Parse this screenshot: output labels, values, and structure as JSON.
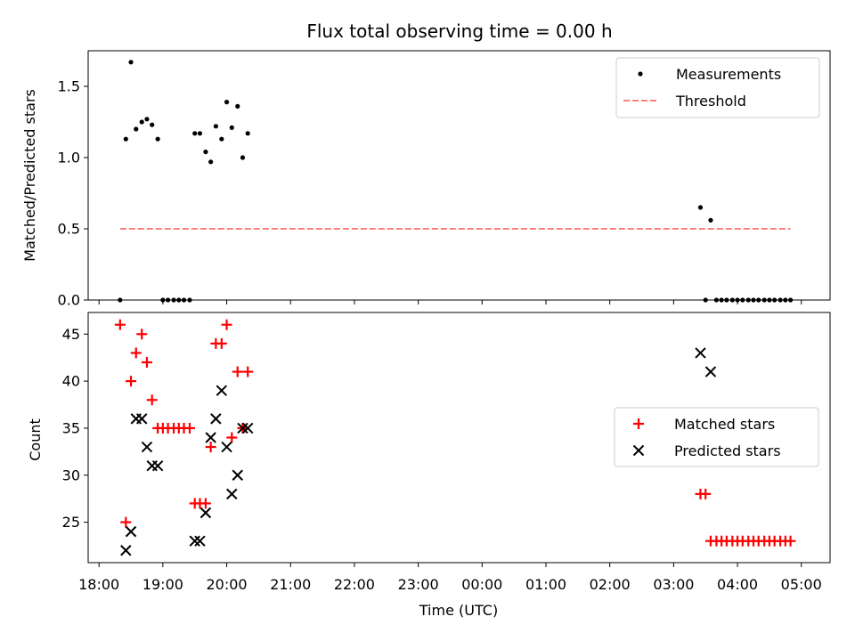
{
  "chart_data": [
    {
      "type": "scatter",
      "title": "Flux total observing time = 0.00 h",
      "xlabel": "",
      "ylabel": "Matched/Predicted stars",
      "xlim": [
        17.83,
        29.45
      ],
      "ylim": [
        0.0,
        1.75
      ],
      "yticks": [
        0.0,
        0.5,
        1.0,
        1.5
      ],
      "ytick_labels": [
        "0.0",
        "0.5",
        "1.0",
        "1.5"
      ],
      "legend_position": "upper right",
      "series": [
        {
          "name": "Measurements",
          "style": "dot",
          "color": "#000000",
          "points": [
            [
              18.33,
              0.0
            ],
            [
              18.42,
              1.13
            ],
            [
              18.5,
              1.67
            ],
            [
              18.58,
              1.2
            ],
            [
              18.67,
              1.25
            ],
            [
              18.75,
              1.27
            ],
            [
              18.83,
              1.23
            ],
            [
              18.92,
              1.13
            ],
            [
              19.0,
              0.0
            ],
            [
              19.08,
              0.0
            ],
            [
              19.17,
              0.0
            ],
            [
              19.25,
              0.0
            ],
            [
              19.33,
              0.0
            ],
            [
              19.42,
              0.0
            ],
            [
              19.5,
              1.17
            ],
            [
              19.58,
              1.17
            ],
            [
              19.67,
              1.04
            ],
            [
              19.75,
              0.97
            ],
            [
              19.83,
              1.22
            ],
            [
              19.92,
              1.13
            ],
            [
              20.0,
              1.39
            ],
            [
              20.08,
              1.21
            ],
            [
              20.17,
              1.36
            ],
            [
              20.25,
              1.0
            ],
            [
              20.33,
              1.17
            ],
            [
              27.42,
              0.65
            ],
            [
              27.5,
              0.0
            ],
            [
              27.58,
              0.56
            ],
            [
              27.67,
              0.0
            ],
            [
              27.75,
              0.0
            ],
            [
              27.83,
              0.0
            ],
            [
              27.92,
              0.0
            ],
            [
              28.0,
              0.0
            ],
            [
              28.08,
              0.0
            ],
            [
              28.17,
              0.0
            ],
            [
              28.25,
              0.0
            ],
            [
              28.33,
              0.0
            ],
            [
              28.42,
              0.0
            ],
            [
              28.5,
              0.0
            ],
            [
              28.58,
              0.0
            ],
            [
              28.67,
              0.0
            ],
            [
              28.75,
              0.0
            ],
            [
              28.83,
              0.0
            ]
          ]
        },
        {
          "name": "Threshold",
          "style": "dashed-line",
          "color": "#ff7f7f",
          "x": [
            18.33,
            28.83
          ],
          "y": [
            0.5,
            0.5
          ]
        }
      ]
    },
    {
      "type": "scatter",
      "title": "",
      "xlabel": "Time (UTC)",
      "ylabel": "Count",
      "xlim": [
        17.83,
        29.45
      ],
      "ylim": [
        20.7,
        47.3
      ],
      "yticks": [
        25,
        30,
        35,
        40,
        45
      ],
      "ytick_labels": [
        "25",
        "30",
        "35",
        "40",
        "45"
      ],
      "xticks": [
        18,
        19,
        20,
        21,
        22,
        23,
        24,
        25,
        26,
        27,
        28,
        29
      ],
      "xtick_labels": [
        "18:00",
        "19:00",
        "20:00",
        "21:00",
        "22:00",
        "23:00",
        "00:00",
        "01:00",
        "02:00",
        "03:00",
        "04:00",
        "05:00"
      ],
      "legend_position": "center right",
      "series": [
        {
          "name": "Matched stars",
          "style": "plus",
          "color": "#ff0000",
          "points": [
            [
              18.33,
              46
            ],
            [
              18.42,
              25
            ],
            [
              18.5,
              40
            ],
            [
              18.58,
              43
            ],
            [
              18.67,
              45
            ],
            [
              18.75,
              42
            ],
            [
              18.83,
              38
            ],
            [
              18.92,
              35
            ],
            [
              19.0,
              35
            ],
            [
              19.08,
              35
            ],
            [
              19.17,
              35
            ],
            [
              19.25,
              35
            ],
            [
              19.33,
              35
            ],
            [
              19.42,
              35
            ],
            [
              19.5,
              27
            ],
            [
              19.58,
              27
            ],
            [
              19.67,
              27
            ],
            [
              19.75,
              33
            ],
            [
              19.83,
              44
            ],
            [
              19.92,
              44
            ],
            [
              20.0,
              46
            ],
            [
              20.08,
              34
            ],
            [
              20.17,
              41
            ],
            [
              20.25,
              35
            ],
            [
              20.33,
              41
            ],
            [
              27.42,
              28
            ],
            [
              27.5,
              28
            ],
            [
              27.58,
              23
            ],
            [
              27.67,
              23
            ],
            [
              27.75,
              23
            ],
            [
              27.83,
              23
            ],
            [
              27.92,
              23
            ],
            [
              28.0,
              23
            ],
            [
              28.08,
              23
            ],
            [
              28.17,
              23
            ],
            [
              28.25,
              23
            ],
            [
              28.33,
              23
            ],
            [
              28.42,
              23
            ],
            [
              28.5,
              23
            ],
            [
              28.58,
              23
            ],
            [
              28.67,
              23
            ],
            [
              28.75,
              23
            ],
            [
              28.83,
              23
            ]
          ]
        },
        {
          "name": "Predicted stars",
          "style": "x",
          "color": "#000000",
          "points": [
            [
              18.42,
              22
            ],
            [
              18.5,
              24
            ],
            [
              18.58,
              36
            ],
            [
              18.67,
              36
            ],
            [
              18.75,
              33
            ],
            [
              18.83,
              31
            ],
            [
              18.92,
              31
            ],
            [
              19.5,
              23
            ],
            [
              19.58,
              23
            ],
            [
              19.67,
              26
            ],
            [
              19.75,
              34
            ],
            [
              19.83,
              36
            ],
            [
              19.92,
              39
            ],
            [
              20.0,
              33
            ],
            [
              20.08,
              28
            ],
            [
              20.17,
              30
            ],
            [
              20.25,
              35
            ],
            [
              20.33,
              35
            ],
            [
              27.42,
              43
            ],
            [
              27.58,
              41
            ]
          ]
        }
      ]
    }
  ]
}
